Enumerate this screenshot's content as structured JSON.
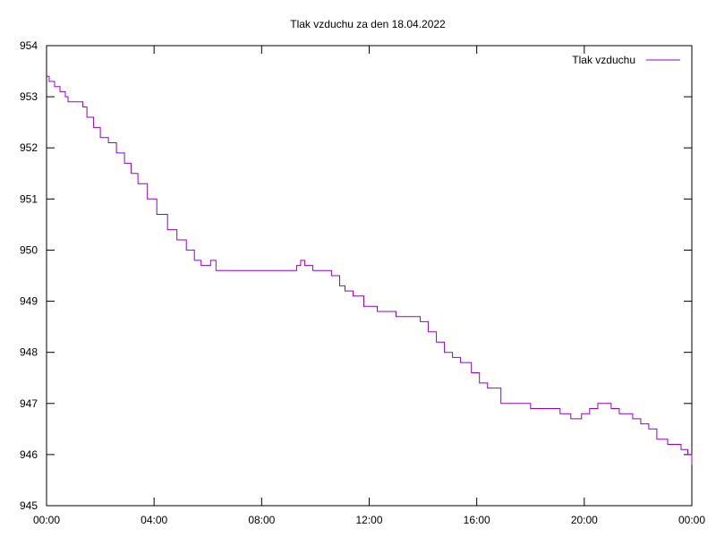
{
  "chart_data": {
    "type": "line",
    "title": "Tlak vzduchu za den 18.04.2022",
    "xlabel": "",
    "ylabel": "",
    "x_ticks": [
      "00:00",
      "04:00",
      "08:00",
      "12:00",
      "16:00",
      "20:00",
      "00:00"
    ],
    "y_ticks": [
      "945",
      "946",
      "947",
      "948",
      "949",
      "950",
      "951",
      "952",
      "953",
      "954"
    ],
    "xlim_hours": [
      0,
      24
    ],
    "ylim": [
      945,
      954
    ],
    "grid": false,
    "legend_position": "top-right",
    "series": [
      {
        "name": "Tlak vzduchu",
        "color": "#9400d3",
        "x_hours": [
          0.0,
          0.1,
          0.3,
          0.5,
          0.7,
          0.8,
          0.95,
          1.2,
          1.35,
          1.5,
          1.75,
          2.0,
          2.3,
          2.6,
          2.9,
          3.15,
          3.4,
          3.75,
          4.1,
          4.5,
          4.85,
          5.2,
          5.5,
          5.75,
          5.95,
          6.1,
          6.3,
          6.5,
          7.0,
          7.5,
          8.0,
          8.5,
          9.0,
          9.3,
          9.45,
          9.6,
          9.9,
          10.3,
          10.6,
          10.9,
          11.1,
          11.4,
          11.8,
          12.3,
          12.5,
          13.0,
          13.5,
          13.9,
          14.2,
          14.5,
          14.8,
          15.1,
          15.4,
          15.8,
          16.1,
          16.4,
          16.9,
          17.3,
          17.7,
          18.0,
          18.5,
          19.1,
          19.5,
          19.9,
          20.2,
          20.5,
          20.8,
          21.0,
          21.3,
          21.8,
          22.1,
          22.4,
          22.7,
          23.1,
          23.6,
          23.85,
          24.0
        ],
        "values": [
          953.4,
          953.3,
          953.2,
          953.1,
          953.0,
          952.9,
          952.9,
          952.9,
          952.8,
          952.6,
          952.4,
          952.2,
          952.1,
          951.9,
          951.7,
          951.5,
          951.3,
          951.0,
          950.7,
          950.4,
          950.2,
          950.0,
          949.8,
          949.7,
          949.7,
          949.8,
          949.6,
          949.6,
          949.6,
          949.6,
          949.6,
          949.6,
          949.6,
          949.7,
          949.8,
          949.7,
          949.6,
          949.6,
          949.5,
          949.3,
          949.2,
          949.1,
          948.9,
          948.8,
          948.8,
          948.7,
          948.7,
          948.6,
          948.4,
          948.2,
          948.0,
          947.9,
          947.8,
          947.6,
          947.4,
          947.3,
          947.0,
          947.0,
          947.0,
          946.9,
          946.9,
          946.8,
          946.7,
          946.8,
          946.9,
          947.0,
          947.0,
          946.9,
          946.8,
          946.7,
          946.6,
          946.5,
          946.3,
          946.2,
          946.1,
          946.0,
          945.8
        ]
      }
    ]
  }
}
